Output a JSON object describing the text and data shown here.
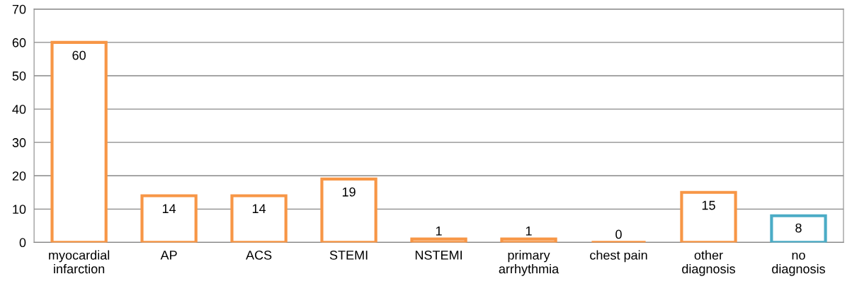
{
  "chart_data": {
    "type": "bar",
    "categories": [
      "myocardial\ninfarction",
      "AP",
      "ACS",
      "STEMI",
      "NSTEMI",
      "primary\narrhythmia",
      "chest pain",
      "other\ndiagnosis",
      "no\ndiagnosis"
    ],
    "values": [
      60,
      14,
      14,
      19,
      1,
      1,
      0,
      15,
      8
    ],
    "colors": [
      "#f79646",
      "#f79646",
      "#f79646",
      "#f79646",
      "#f79646",
      "#f79646",
      "#f79646",
      "#f79646",
      "#4bacc6"
    ],
    "ylim": [
      0,
      70
    ],
    "yticks": [
      0,
      10,
      20,
      30,
      40,
      50,
      60,
      70
    ],
    "grid": "y",
    "data_labels": true
  }
}
